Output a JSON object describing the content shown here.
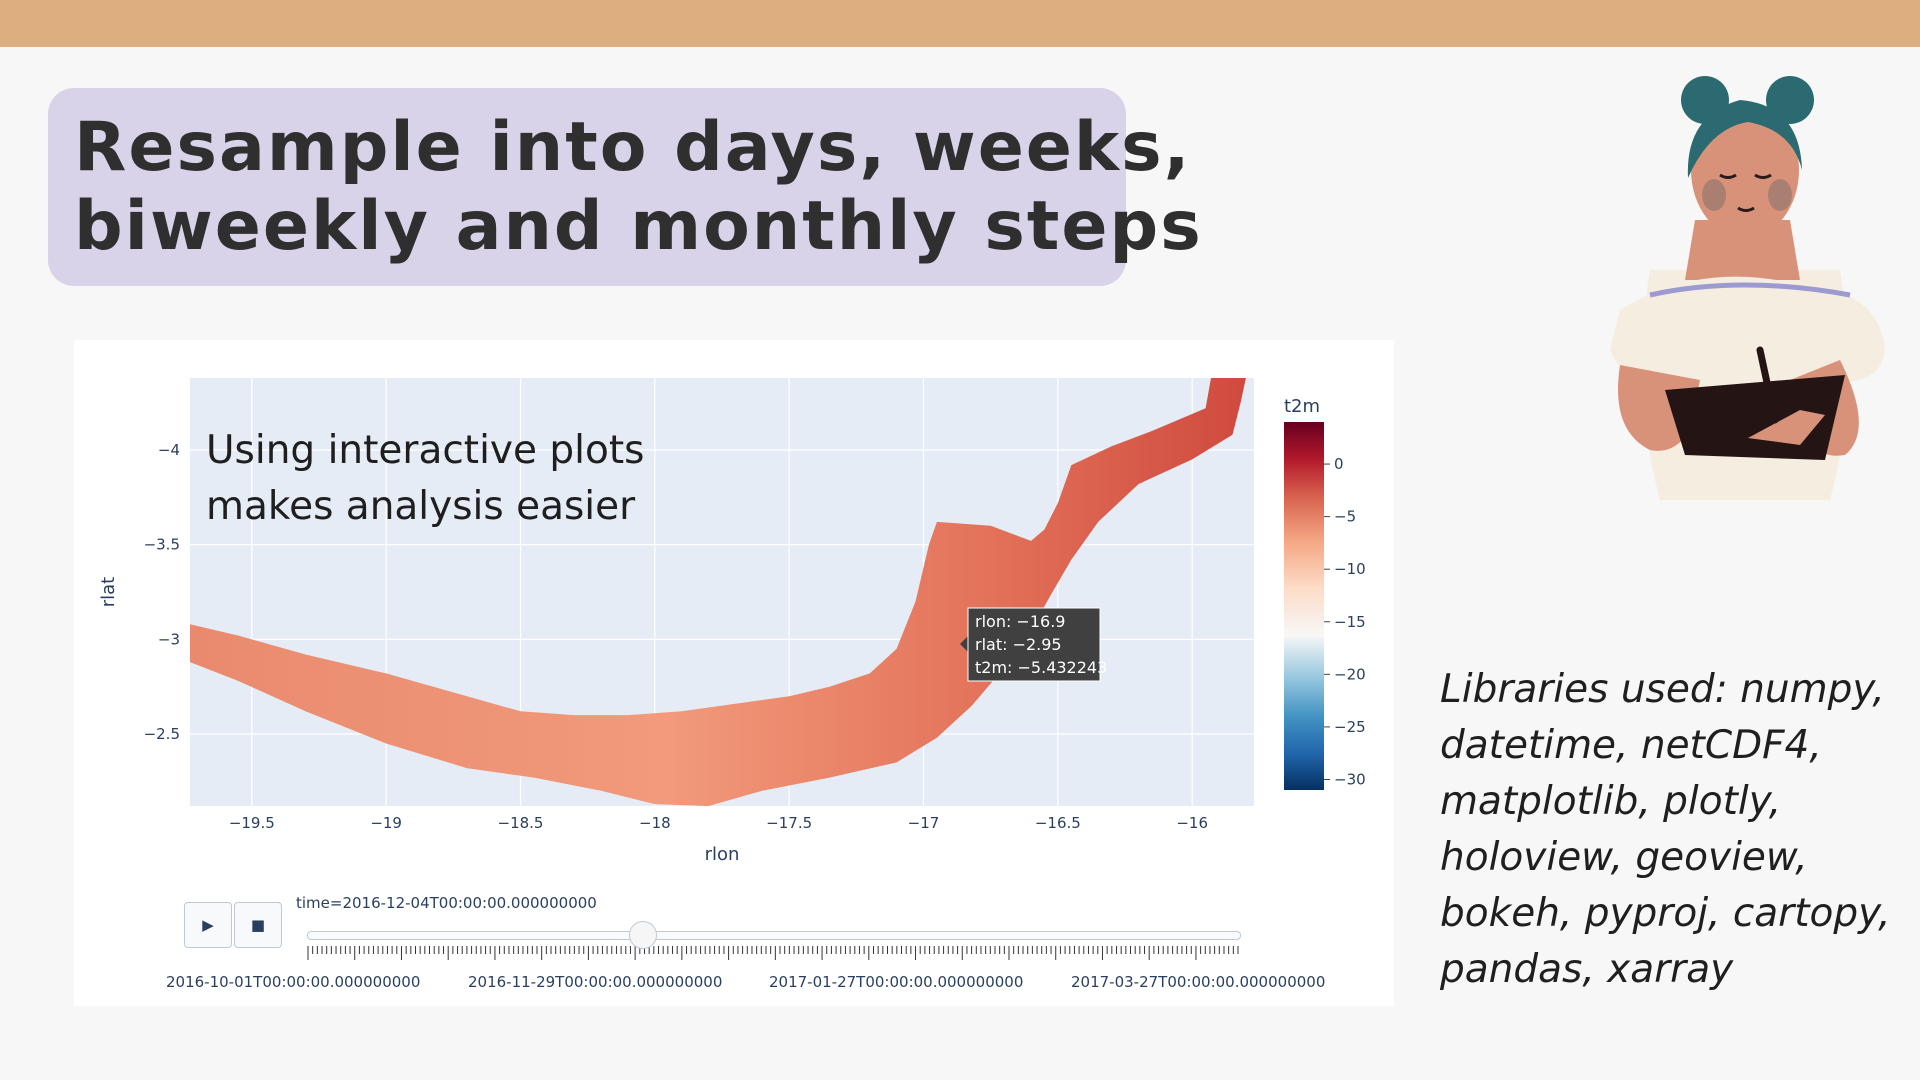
{
  "slide": {
    "title_line1": "Resample into days, weeks,",
    "title_line2": "biweekly and monthly steps",
    "libraries_line1": "Libraries used: numpy,",
    "libraries_line2": "datetime, netCDF4,",
    "libraries_line3": "matplotlib, plotly,",
    "libraries_line4": "holoview, geoview,",
    "libraries_line5": "bokeh, pyproj, cartopy,",
    "libraries_line6": "pandas, xarray",
    "illustration_icon": "woman-writing-in-notebook-illustration",
    "colors": {
      "top_bar": "#dcae80",
      "title_box": "#d9d3ea",
      "background": "#f7f7f7"
    }
  },
  "plot": {
    "annotation_line1": "Using interactive plots",
    "annotation_line2": "makes analysis easier",
    "tooltip": {
      "line1": "rlon: −16.9",
      "line2": "rlat: −2.95",
      "line3": "t2m: −5.432243"
    },
    "controls": {
      "play_icon": "play-icon",
      "stop_icon": "stop-icon",
      "play_glyph": "▶",
      "stop_glyph": "■",
      "current_label": "time=2016-12-04T00:00:00.000000000",
      "current_fraction": 0.36,
      "step_labels": [
        "2016-10-01T00:00:00.000000000",
        "2016-11-29T00:00:00.000000000",
        "2017-01-27T00:00:00.000000000",
        "2017-03-27T00:00:00.000000000"
      ]
    }
  },
  "chart_data": {
    "type": "heatmap",
    "title": "",
    "xlabel": "rlon",
    "ylabel": "rlat",
    "xlim": [
      -19.73,
      -15.77
    ],
    "ylim": [
      -2.12,
      -4.38
    ],
    "xticks": [
      -19.5,
      -19,
      -18.5,
      -18,
      -17.5,
      -17,
      -16.5,
      -16
    ],
    "xtick_labels": [
      "−19.5",
      "−19",
      "−18.5",
      "−18",
      "−17.5",
      "−17",
      "−16.5",
      "−16"
    ],
    "yticks": [
      -4,
      -3.5,
      -3,
      -2.5
    ],
    "ytick_labels": [
      "−4",
      "−3.5",
      "−3",
      "−2.5"
    ],
    "colorbar": {
      "title": "t2m",
      "range": [
        -31,
        4
      ],
      "ticks": [
        0,
        -5,
        -10,
        -15,
        -20,
        -25,
        -30
      ],
      "tick_labels": [
        "0",
        "−5",
        "−10",
        "−15",
        "−20",
        "−25",
        "−30"
      ],
      "colorscale": "RdBu_r"
    },
    "grid": true,
    "region_outline_top": [
      [
        -19.73,
        -3.08
      ],
      [
        -19.55,
        -3.02
      ],
      [
        -19.3,
        -2.92
      ],
      [
        -19,
        -2.82
      ],
      [
        -18.75,
        -2.72
      ],
      [
        -18.5,
        -2.62
      ],
      [
        -18.3,
        -2.6
      ],
      [
        -18.1,
        -2.6
      ],
      [
        -17.9,
        -2.62
      ],
      [
        -17.7,
        -2.66
      ],
      [
        -17.5,
        -2.7
      ],
      [
        -17.35,
        -2.75
      ],
      [
        -17.2,
        -2.82
      ],
      [
        -17.1,
        -2.95
      ],
      [
        -17.03,
        -3.2
      ],
      [
        -16.98,
        -3.5
      ],
      [
        -16.95,
        -3.62
      ],
      [
        -16.75,
        -3.6
      ],
      [
        -16.6,
        -3.52
      ],
      [
        -16.55,
        -3.58
      ],
      [
        -16.5,
        -3.72
      ],
      [
        -16.45,
        -3.92
      ],
      [
        -16.3,
        -4.02
      ],
      [
        -16.15,
        -4.1
      ],
      [
        -15.95,
        -4.22
      ],
      [
        -15.93,
        -4.38
      ],
      [
        -15.8,
        -4.38
      ],
      [
        -15.82,
        -4.25
      ]
    ],
    "region_outline_bottom": [
      [
        -15.82,
        -4.25
      ],
      [
        -15.85,
        -4.08
      ],
      [
        -16.0,
        -3.95
      ],
      [
        -16.2,
        -3.82
      ],
      [
        -16.35,
        -3.62
      ],
      [
        -16.45,
        -3.42
      ],
      [
        -16.52,
        -3.25
      ],
      [
        -16.6,
        -3.05
      ],
      [
        -16.7,
        -2.85
      ],
      [
        -16.82,
        -2.65
      ],
      [
        -16.95,
        -2.48
      ],
      [
        -17.1,
        -2.35
      ],
      [
        -17.35,
        -2.27
      ],
      [
        -17.6,
        -2.2
      ],
      [
        -17.8,
        -2.12
      ],
      [
        -18.0,
        -2.13
      ],
      [
        -18.2,
        -2.2
      ],
      [
        -18.45,
        -2.27
      ],
      [
        -18.7,
        -2.32
      ],
      [
        -19.0,
        -2.45
      ],
      [
        -19.3,
        -2.62
      ],
      [
        -19.55,
        -2.78
      ],
      [
        -19.73,
        -2.88
      ]
    ]
  }
}
